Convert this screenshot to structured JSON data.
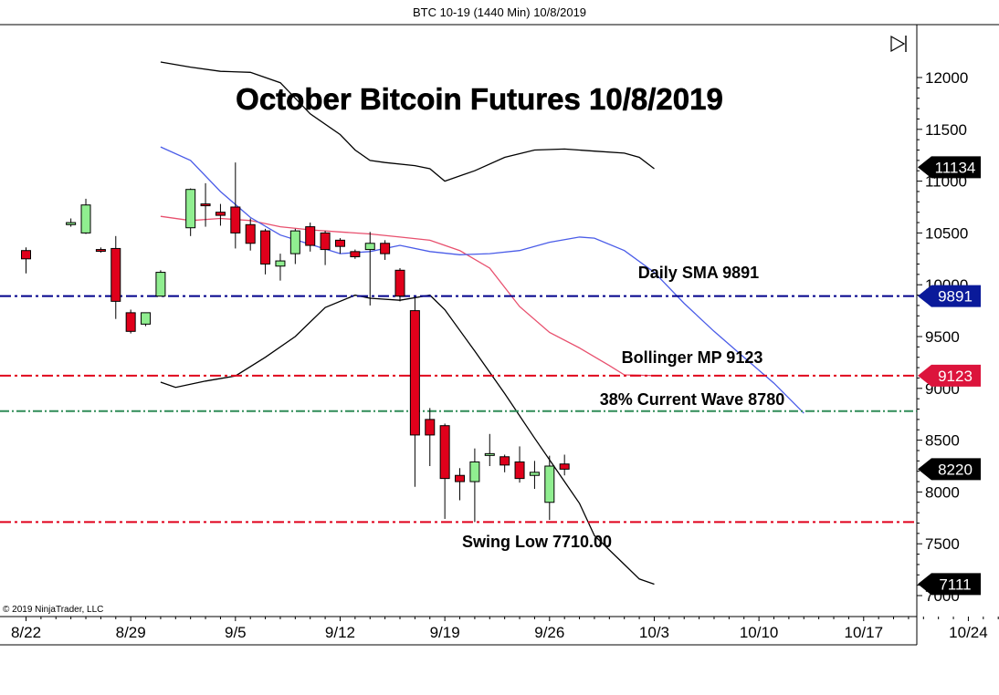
{
  "header": {
    "title": "BTC 10-19 (1440 Min)  10/8/2019"
  },
  "copyright": "© 2019 NinjaTrader, LLC",
  "chart_data": {
    "type": "candlestick",
    "title": "October Bitcoin Futures 10/8/2019",
    "ylim": [
      6900,
      12500
    ],
    "y_ticks": [
      7000,
      7500,
      8000,
      8500,
      9000,
      9500,
      10000,
      10500,
      11000,
      11500,
      12000
    ],
    "x_ticks": [
      "8/22",
      "8/29",
      "9/5",
      "9/12",
      "9/19",
      "9/26",
      "10/3",
      "10/10",
      "10/17",
      "10/24"
    ],
    "x_tick_days": [
      0,
      7,
      14,
      21,
      28,
      35,
      42,
      49,
      56,
      63
    ],
    "candles": [
      {
        "day": 0,
        "o": 10330,
        "h": 10360,
        "l": 10110,
        "c": 10250
      },
      {
        "day": 3,
        "o": 10580,
        "h": 10640,
        "l": 10560,
        "c": 10600
      },
      {
        "day": 4,
        "o": 10500,
        "h": 10830,
        "l": 10490,
        "c": 10770
      },
      {
        "day": 5,
        "o": 10340,
        "h": 10360,
        "l": 10310,
        "c": 10330
      },
      {
        "day": 6,
        "o": 10350,
        "h": 10470,
        "l": 9670,
        "c": 9840
      },
      {
        "day": 7,
        "o": 9730,
        "h": 9760,
        "l": 9530,
        "c": 9550
      },
      {
        "day": 8,
        "o": 9620,
        "h": 9720,
        "l": 9600,
        "c": 9730
      },
      {
        "day": 9,
        "o": 9890,
        "h": 10140,
        "l": 9890,
        "c": 10120
      },
      {
        "day": 11,
        "o": 10550,
        "h": 10930,
        "l": 10470,
        "c": 10920
      },
      {
        "day": 12,
        "o": 10780,
        "h": 10980,
        "l": 10560,
        "c": 10770
      },
      {
        "day": 13,
        "o": 10700,
        "h": 10780,
        "l": 10570,
        "c": 10670
      },
      {
        "day": 14,
        "o": 10750,
        "h": 11180,
        "l": 10350,
        "c": 10500
      },
      {
        "day": 15,
        "o": 10580,
        "h": 10640,
        "l": 10330,
        "c": 10400
      },
      {
        "day": 16,
        "o": 10520,
        "h": 10540,
        "l": 10100,
        "c": 10200
      },
      {
        "day": 17,
        "o": 10180,
        "h": 10300,
        "l": 10040,
        "c": 10230
      },
      {
        "day": 18,
        "o": 10300,
        "h": 10540,
        "l": 10200,
        "c": 10520
      },
      {
        "day": 19,
        "o": 10560,
        "h": 10600,
        "l": 10320,
        "c": 10380
      },
      {
        "day": 20,
        "o": 10500,
        "h": 10520,
        "l": 10190,
        "c": 10340
      },
      {
        "day": 21,
        "o": 10430,
        "h": 10450,
        "l": 10300,
        "c": 10370
      },
      {
        "day": 22,
        "o": 10320,
        "h": 10340,
        "l": 10250,
        "c": 10270
      },
      {
        "day": 23,
        "o": 10340,
        "h": 10510,
        "l": 9800,
        "c": 10400
      },
      {
        "day": 24,
        "o": 10400,
        "h": 10430,
        "l": 10240,
        "c": 10300
      },
      {
        "day": 25,
        "o": 10140,
        "h": 10160,
        "l": 9840,
        "c": 9890
      },
      {
        "day": 26,
        "o": 9750,
        "h": 9870,
        "l": 8050,
        "c": 8550
      },
      {
        "day": 27,
        "o": 8700,
        "h": 8810,
        "l": 8250,
        "c": 8550
      },
      {
        "day": 28,
        "o": 8640,
        "h": 8660,
        "l": 7740,
        "c": 8130
      },
      {
        "day": 29,
        "o": 8160,
        "h": 8230,
        "l": 7920,
        "c": 8100
      },
      {
        "day": 30,
        "o": 8100,
        "h": 8420,
        "l": 7710,
        "c": 8290
      },
      {
        "day": 31,
        "o": 8360,
        "h": 8560,
        "l": 8250,
        "c": 8370
      },
      {
        "day": 32,
        "o": 8340,
        "h": 8360,
        "l": 8190,
        "c": 8260
      },
      {
        "day": 33,
        "o": 8290,
        "h": 8440,
        "l": 8090,
        "c": 8130
      },
      {
        "day": 34,
        "o": 8160,
        "h": 8300,
        "l": 8030,
        "c": 8190
      },
      {
        "day": 35,
        "o": 7900,
        "h": 8350,
        "l": 7730,
        "c": 8250
      },
      {
        "day": 36,
        "o": 8270,
        "h": 8360,
        "l": 8160,
        "c": 8220
      }
    ],
    "bollinger_upper": [
      [
        9,
        12150
      ],
      [
        11,
        12100
      ],
      [
        13,
        12060
      ],
      [
        15,
        12050
      ],
      [
        17,
        11950
      ],
      [
        19,
        11650
      ],
      [
        21,
        11450
      ],
      [
        22,
        11300
      ],
      [
        23,
        11200
      ],
      [
        24,
        11180
      ],
      [
        26,
        11150
      ],
      [
        27,
        11120
      ],
      [
        28,
        11000
      ],
      [
        30,
        11100
      ],
      [
        32,
        11230
      ],
      [
        34,
        11300
      ],
      [
        36,
        11310
      ],
      [
        38,
        11290
      ],
      [
        40,
        11270
      ],
      [
        41,
        11230
      ],
      [
        42,
        11120
      ]
    ],
    "bollinger_lower": [
      [
        9,
        9060
      ],
      [
        10,
        9010
      ],
      [
        12,
        9070
      ],
      [
        14,
        9120
      ],
      [
        16,
        9300
      ],
      [
        18,
        9500
      ],
      [
        20,
        9780
      ],
      [
        22,
        9900
      ],
      [
        23,
        9870
      ],
      [
        25,
        9850
      ],
      [
        27,
        9900
      ],
      [
        28,
        9760
      ],
      [
        30,
        9360
      ],
      [
        32,
        8950
      ],
      [
        34,
        8520
      ],
      [
        36,
        8100
      ],
      [
        37,
        7890
      ],
      [
        38,
        7580
      ],
      [
        40,
        7300
      ],
      [
        41,
        7160
      ],
      [
        42,
        7110
      ]
    ],
    "bollinger_mid": [
      [
        9,
        10660
      ],
      [
        11,
        10620
      ],
      [
        13,
        10640
      ],
      [
        15,
        10620
      ],
      [
        17,
        10560
      ],
      [
        19,
        10530
      ],
      [
        21,
        10510
      ],
      [
        23,
        10490
      ],
      [
        25,
        10460
      ],
      [
        27,
        10430
      ],
      [
        29,
        10330
      ],
      [
        31,
        10160
      ],
      [
        33,
        9790
      ],
      [
        35,
        9540
      ],
      [
        37,
        9390
      ],
      [
        39,
        9220
      ],
      [
        40,
        9130
      ],
      [
        42,
        9123
      ]
    ],
    "sma": [
      [
        9,
        11330
      ],
      [
        11,
        11200
      ],
      [
        13,
        10900
      ],
      [
        15,
        10650
      ],
      [
        17,
        10480
      ],
      [
        19,
        10390
      ],
      [
        21,
        10300
      ],
      [
        23,
        10320
      ],
      [
        25,
        10380
      ],
      [
        27,
        10320
      ],
      [
        29,
        10290
      ],
      [
        31,
        10300
      ],
      [
        33,
        10330
      ],
      [
        35,
        10410
      ],
      [
        37,
        10460
      ],
      [
        38,
        10450
      ],
      [
        40,
        10330
      ],
      [
        42,
        10120
      ],
      [
        44,
        9820
      ],
      [
        46,
        9550
      ],
      [
        48,
        9300
      ],
      [
        50,
        9050
      ],
      [
        52,
        8760
      ]
    ],
    "levels": [
      {
        "name": "Daily SMA 9891",
        "value": 9891,
        "color": "#00008b",
        "badge": "9891",
        "badge_color": "#0a1a9a"
      },
      {
        "name": "Bollinger MP 9123",
        "value": 9123,
        "color": "#e0001b",
        "badge": "9123",
        "badge_color": "#dc143c"
      },
      {
        "name": "38% Current Wave 8780",
        "value": 8780,
        "color": "#2e8b57"
      },
      {
        "name": "Swing Low 7710.00",
        "value": 7710,
        "color": "#e0001b"
      }
    ],
    "badges": [
      {
        "value": 11134,
        "label": "11134",
        "color": "#000000"
      },
      {
        "value": 8220,
        "label": "8220",
        "color": "#000000"
      },
      {
        "value": 7111,
        "label": "7111",
        "color": "#000000"
      }
    ],
    "colors": {
      "up": "#90ee90",
      "down": "#e0001b",
      "bb_outer": "#000000",
      "bb_mid": "#e8506e",
      "sma": "#4a5ce8"
    }
  }
}
